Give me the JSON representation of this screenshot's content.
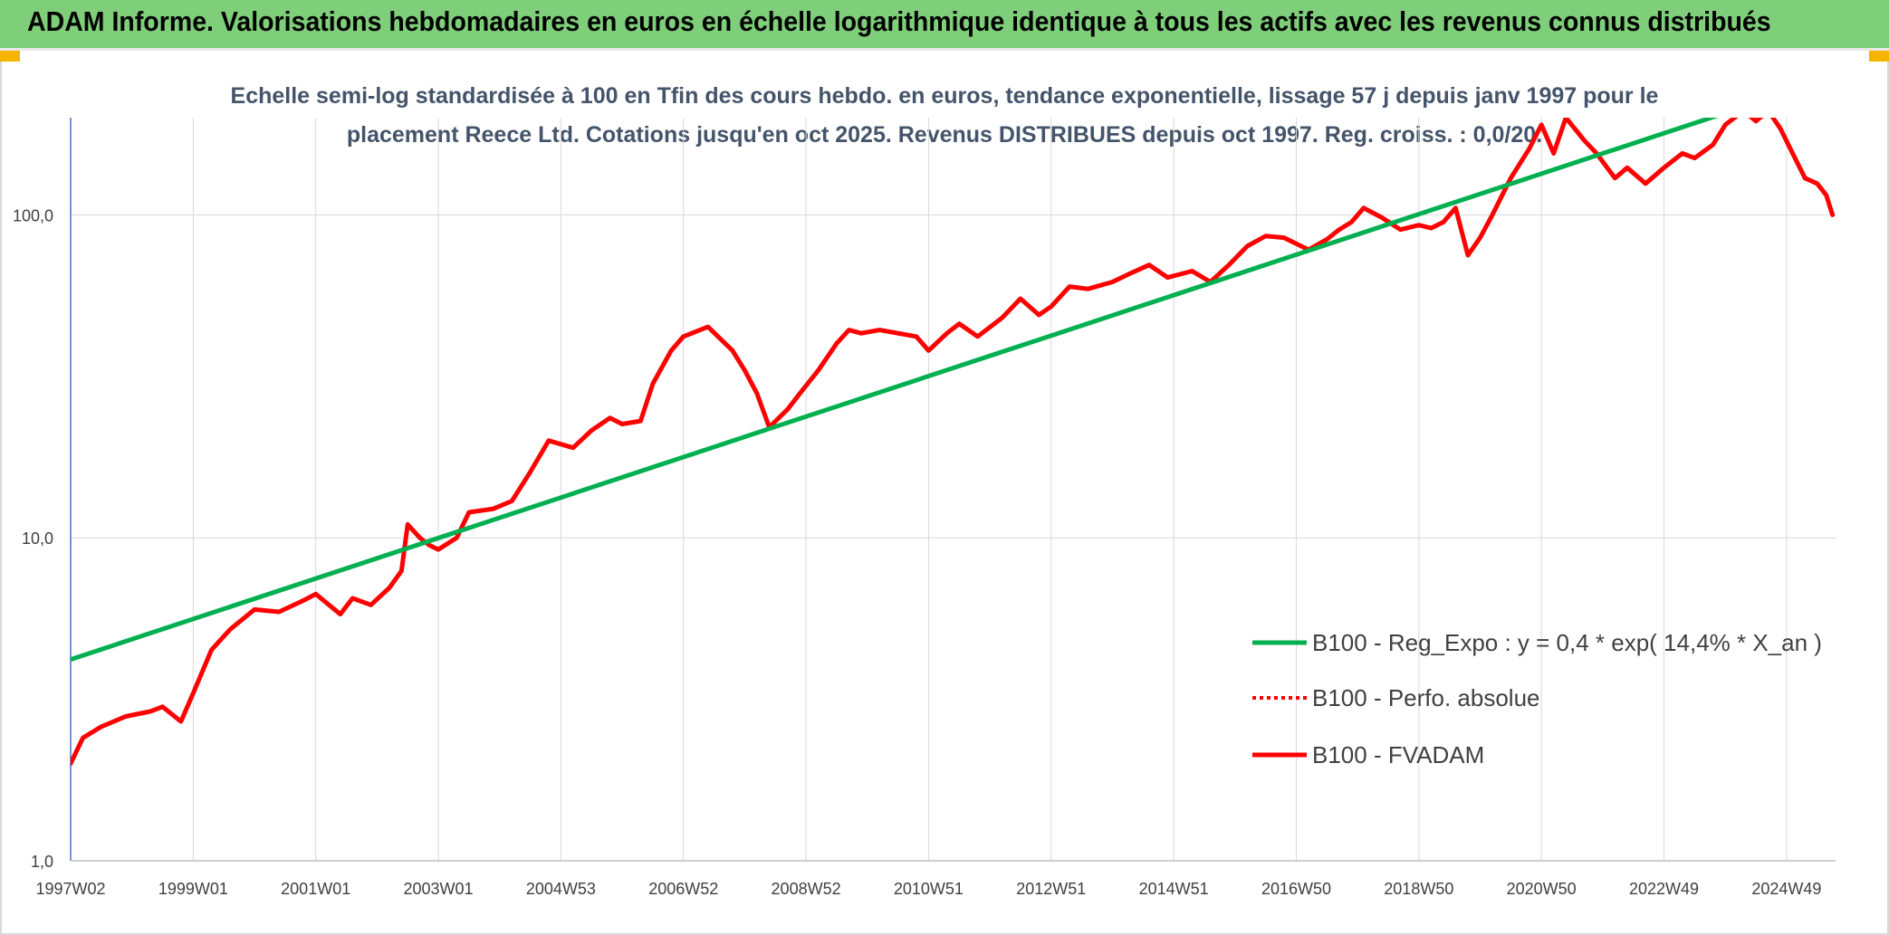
{
  "banner": {
    "title": "ADAM Informe. Valorisations hebdomadaires en euros en échelle logarithmique identique à tous les actifs avec les revenus connus distribués",
    "background": "#7fcf7a"
  },
  "chart_data": {
    "type": "line",
    "subtitle_line1": "Echelle semi-log standardisée à 100 en Tfin des cours hebdo. en euros, tendance exponentielle, lissage 57 j depuis janv 1997 pour le",
    "subtitle_line2": "placement Reece Ltd. Cotations jusqu'en oct 2025. Revenus DISTRIBUES depuis oct 1997. Reg. croiss. : 0,0/20.",
    "y_scale": "log",
    "ylim": [
      1,
      200
    ],
    "y_ticks": [
      1,
      10,
      100
    ],
    "y_tick_labels": [
      "1,0",
      "10,0",
      "100,0"
    ],
    "xlim": [
      1997.0,
      2025.8
    ],
    "x_ticks": [
      1997.0,
      1999.0,
      2001.0,
      2003.0,
      2005.0,
      2007.0,
      2009.0,
      2011.0,
      2013.0,
      2015.0,
      2017.0,
      2019.0,
      2021.0,
      2023.0,
      2025.0
    ],
    "x_tick_labels": [
      "1997W02",
      "1999W01",
      "2001W01",
      "2003W01",
      "2004W53",
      "2006W52",
      "2008W52",
      "2010W51",
      "2012W51",
      "2014W51",
      "2016W50",
      "2018W50",
      "2020W50",
      "2022W49",
      "2024W49"
    ],
    "grid": "vertical",
    "legend_position": "right",
    "series": [
      {
        "name": "B100 - Reg_Expo : y = 0,4 * exp( 14,4% *  X_an )",
        "color": "#00b050",
        "style": "solid",
        "x": [
          1997.0,
          2025.8
        ],
        "y": [
          4.2,
          268
        ]
      },
      {
        "name": "B100 - Perfo. absolue",
        "color": "#ff0000",
        "style": "dotted",
        "x": [],
        "y": []
      },
      {
        "name": "B100 - FVADAM",
        "color": "#ff0000",
        "style": "solid",
        "x": [
          1997.0,
          1997.2,
          1997.5,
          1997.9,
          1998.3,
          1998.5,
          1998.8,
          1999.0,
          1999.3,
          1999.6,
          2000.0,
          2000.4,
          2000.8,
          2001.0,
          2001.4,
          2001.6,
          2001.9,
          2002.2,
          2002.4,
          2002.5,
          2002.7,
          2002.85,
          2003.0,
          2003.3,
          2003.5,
          2003.9,
          2004.2,
          2004.5,
          2004.8,
          2005.2,
          2005.5,
          2005.8,
          2006.0,
          2006.3,
          2006.5,
          2006.8,
          2007.0,
          2007.4,
          2007.8,
          2008.0,
          2008.2,
          2008.4,
          2008.7,
          2008.9,
          2009.2,
          2009.5,
          2009.7,
          2009.9,
          2010.2,
          2010.5,
          2010.8,
          2011.0,
          2011.3,
          2011.5,
          2011.8,
          2012.2,
          2012.5,
          2012.8,
          2013.0,
          2013.3,
          2013.6,
          2014.0,
          2014.3,
          2014.6,
          2014.9,
          2015.3,
          2015.6,
          2015.9,
          2016.2,
          2016.5,
          2016.8,
          2017.2,
          2017.5,
          2017.7,
          2017.9,
          2018.1,
          2018.4,
          2018.7,
          2019.0,
          2019.2,
          2019.4,
          2019.6,
          2019.8,
          2020.0,
          2020.2,
          2020.5,
          2020.8,
          2021.0,
          2021.2,
          2021.4,
          2021.7,
          2021.9,
          2022.2,
          2022.4,
          2022.7,
          2023.0,
          2023.3,
          2023.5,
          2023.8,
          2024.0,
          2024.3,
          2024.5,
          2024.7,
          2024.9,
          2025.1,
          2025.3,
          2025.5,
          2025.65,
          2025.75
        ],
        "y": [
          2.0,
          2.4,
          2.6,
          2.8,
          2.9,
          3.0,
          2.7,
          3.3,
          4.5,
          5.2,
          6.0,
          5.9,
          6.4,
          6.7,
          5.8,
          6.5,
          6.2,
          7.0,
          7.9,
          11.0,
          10.0,
          9.5,
          9.2,
          10.0,
          12.0,
          12.3,
          13.0,
          16.0,
          20.0,
          19.0,
          21.5,
          23.5,
          22.5,
          23.0,
          30.0,
          38.0,
          42.0,
          45.0,
          38.0,
          33.0,
          28.0,
          22.0,
          25.0,
          28.0,
          33.0,
          40.0,
          44.0,
          43.0,
          44.0,
          43.0,
          42.0,
          38.0,
          43.0,
          46.0,
          42.0,
          48.0,
          55.0,
          49.0,
          52.0,
          60.0,
          59.0,
          62.0,
          66.0,
          70.0,
          64.0,
          67.0,
          62.0,
          70.0,
          80.0,
          86.0,
          85.0,
          78.0,
          84.0,
          90.0,
          95.0,
          105.0,
          98.0,
          90.0,
          93.0,
          91.0,
          95.0,
          105.0,
          75.0,
          85.0,
          100.0,
          130.0,
          160.0,
          190.0,
          155.0,
          200.0,
          170.0,
          155.0,
          130.0,
          140.0,
          125.0,
          140.0,
          155.0,
          150.0,
          165.0,
          190.0,
          210.0,
          195.0,
          210.0,
          185.0,
          155.0,
          130.0,
          125.0,
          115.0,
          100.0
        ]
      }
    ]
  }
}
